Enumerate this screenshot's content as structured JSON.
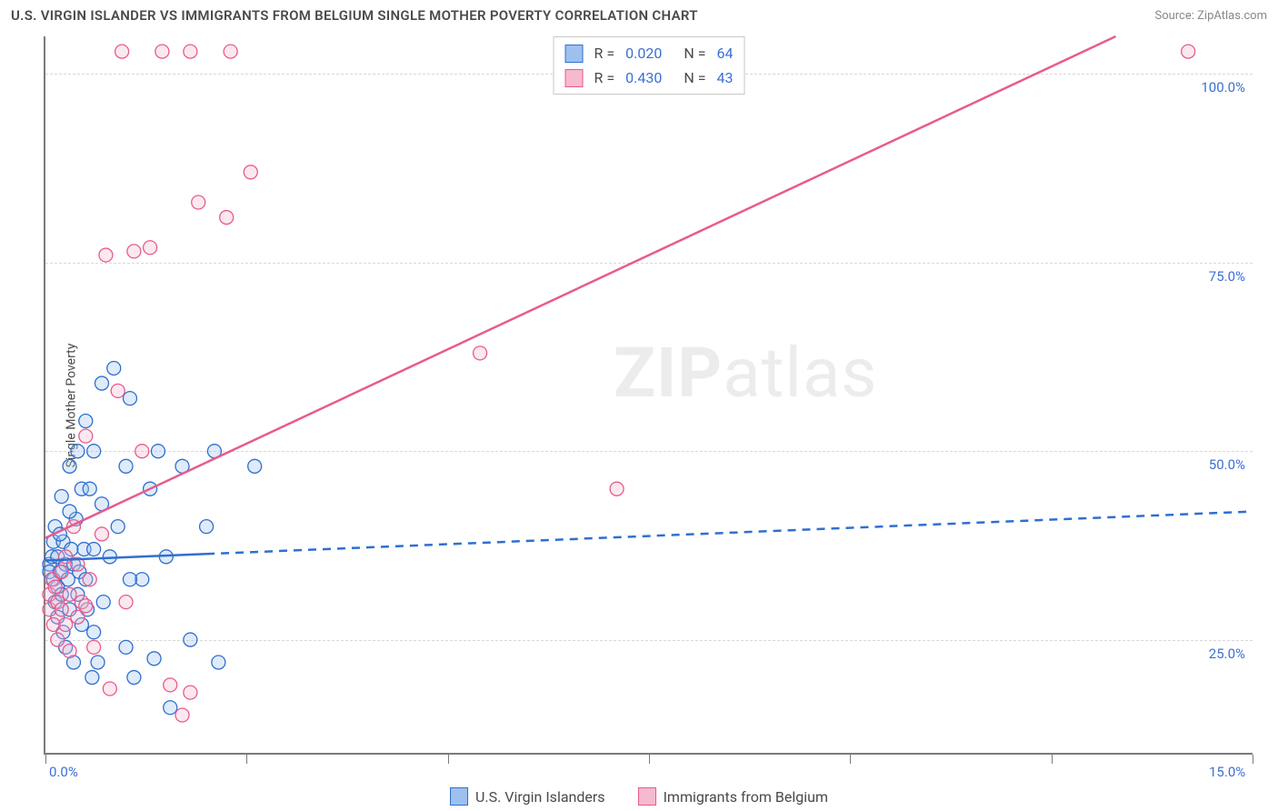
{
  "title": "U.S. VIRGIN ISLANDER VS IMMIGRANTS FROM BELGIUM SINGLE MOTHER POVERTY CORRELATION CHART",
  "source": "Source: ZipAtlas.com",
  "y_axis_label": "Single Mother Poverty",
  "watermark_bold": "ZIP",
  "watermark_rest": "atlas",
  "chart": {
    "type": "scatter",
    "xlim": [
      0,
      15
    ],
    "ylim": [
      10,
      105
    ],
    "x_ticks": [
      0,
      2.5,
      5,
      7.5,
      10,
      12.5,
      15
    ],
    "x_tick_labels": {
      "0": "0.0%",
      "15": "15.0%"
    },
    "y_gridlines": [
      25,
      50,
      75,
      100
    ],
    "y_tick_labels": {
      "25": "25.0%",
      "50": "50.0%",
      "75": "75.0%",
      "100": "100.0%"
    },
    "background_color": "#ffffff",
    "grid_color": "#d8d8d8",
    "axis_color": "#7a7a7a",
    "label_color": "#3b6fd6",
    "marker_radius": 7.5,
    "marker_stroke_width": 1.3,
    "marker_fill_opacity": 0.32,
    "trend_line_width": 2.5,
    "trend_dashed_after_x": 2.0
  },
  "series": [
    {
      "name": "U.S. Virgin Islanders",
      "color_stroke": "#2f6fd0",
      "color_fill": "#9dc0ee",
      "legend_R": "0.020",
      "legend_N": "64",
      "trend": {
        "x1": 0,
        "y1": 35.5,
        "x2": 15,
        "y2": 42.0
      },
      "points": [
        [
          0.05,
          35
        ],
        [
          0.05,
          34
        ],
        [
          0.08,
          36
        ],
        [
          0.1,
          38
        ],
        [
          0.1,
          33
        ],
        [
          0.12,
          30
        ],
        [
          0.12,
          40
        ],
        [
          0.15,
          32
        ],
        [
          0.15,
          36
        ],
        [
          0.15,
          28
        ],
        [
          0.18,
          34
        ],
        [
          0.2,
          44
        ],
        [
          0.2,
          31
        ],
        [
          0.22,
          26
        ],
        [
          0.22,
          38
        ],
        [
          0.25,
          35
        ],
        [
          0.25,
          24
        ],
        [
          0.28,
          33
        ],
        [
          0.3,
          48
        ],
        [
          0.3,
          29
        ],
        [
          0.32,
          37
        ],
        [
          0.35,
          35
        ],
        [
          0.35,
          22
        ],
        [
          0.38,
          41
        ],
        [
          0.4,
          50
        ],
        [
          0.4,
          31
        ],
        [
          0.42,
          34
        ],
        [
          0.45,
          45
        ],
        [
          0.45,
          27
        ],
        [
          0.48,
          37
        ],
        [
          0.5,
          54
        ],
        [
          0.5,
          33
        ],
        [
          0.52,
          29
        ],
        [
          0.55,
          45
        ],
        [
          0.58,
          20
        ],
        [
          0.6,
          37
        ],
        [
          0.6,
          50
        ],
        [
          0.65,
          22
        ],
        [
          0.7,
          59
        ],
        [
          0.7,
          43
        ],
        [
          0.72,
          30
        ],
        [
          0.8,
          36
        ],
        [
          0.85,
          61
        ],
        [
          0.9,
          40
        ],
        [
          1.0,
          24
        ],
        [
          1.0,
          48
        ],
        [
          1.05,
          57
        ],
        [
          1.1,
          20
        ],
        [
          1.2,
          33
        ],
        [
          1.3,
          45
        ],
        [
          1.35,
          22.5
        ],
        [
          1.4,
          50
        ],
        [
          1.5,
          36
        ],
        [
          1.55,
          16
        ],
        [
          1.7,
          48
        ],
        [
          1.8,
          25
        ],
        [
          2.0,
          40
        ],
        [
          2.1,
          50
        ],
        [
          2.15,
          22
        ],
        [
          2.6,
          48
        ],
        [
          1.05,
          33
        ],
        [
          0.6,
          26
        ],
        [
          0.3,
          42
        ],
        [
          0.18,
          39
        ]
      ]
    },
    {
      "name": "Immigrants from Belgium",
      "color_stroke": "#e85b8b",
      "color_fill": "#f6b9cf",
      "legend_R": "0.430",
      "legend_N": "43",
      "trend": {
        "x1": 0,
        "y1": 38.5,
        "x2": 13.3,
        "y2": 105
      },
      "points": [
        [
          0.05,
          29
        ],
        [
          0.05,
          31
        ],
        [
          0.08,
          33
        ],
        [
          0.1,
          27
        ],
        [
          0.12,
          32
        ],
        [
          0.15,
          30
        ],
        [
          0.15,
          25
        ],
        [
          0.2,
          29
        ],
        [
          0.2,
          34
        ],
        [
          0.25,
          27
        ],
        [
          0.25,
          36
        ],
        [
          0.3,
          31
        ],
        [
          0.3,
          23.5
        ],
        [
          0.35,
          40
        ],
        [
          0.4,
          28
        ],
        [
          0.4,
          35
        ],
        [
          0.45,
          30
        ],
        [
          0.5,
          29.5
        ],
        [
          0.5,
          52
        ],
        [
          0.55,
          33
        ],
        [
          0.6,
          24
        ],
        [
          0.7,
          39
        ],
        [
          0.75,
          76
        ],
        [
          0.8,
          18.5
        ],
        [
          0.9,
          58
        ],
        [
          0.95,
          103
        ],
        [
          1.0,
          30
        ],
        [
          1.1,
          76.5
        ],
        [
          1.2,
          50
        ],
        [
          1.3,
          77
        ],
        [
          1.45,
          103
        ],
        [
          1.55,
          19
        ],
        [
          1.7,
          15
        ],
        [
          1.8,
          103
        ],
        [
          1.8,
          18
        ],
        [
          1.9,
          83
        ],
        [
          2.25,
          81
        ],
        [
          2.3,
          103
        ],
        [
          2.55,
          87
        ],
        [
          5.4,
          63
        ],
        [
          7.1,
          45
        ],
        [
          8.4,
          103
        ],
        [
          14.2,
          103
        ]
      ]
    }
  ],
  "legend_top": {
    "R_label": "R =",
    "N_label": "N ="
  },
  "legend_bottom": [
    {
      "series": 0
    },
    {
      "series": 1
    }
  ]
}
